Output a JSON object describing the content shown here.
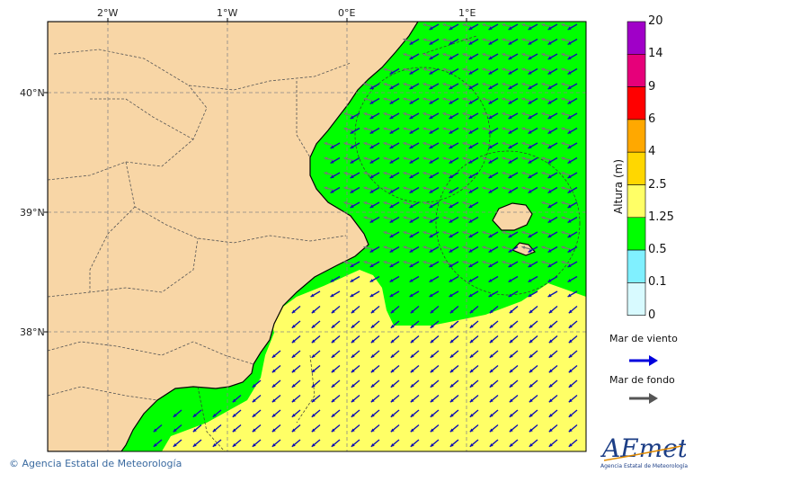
{
  "map": {
    "lon_labels": [
      "2°W",
      "1°W",
      "0°E",
      "1°E"
    ],
    "lat_labels": [
      "40°N",
      "39°N",
      "38°N"
    ],
    "colors": {
      "land": "#f8d6a6",
      "sea_green": "#00ff00",
      "sea_yellow": "#ffff66",
      "arrow_wind": "#0a0aaa",
      "arrow_swell": "#555555"
    }
  },
  "colorbar": {
    "title": "Altura (m)",
    "ticks": [
      "20",
      "14",
      "9",
      "6",
      "4",
      "2.5",
      "1.25",
      "0.5",
      "0.1",
      "0"
    ],
    "colors": [
      "#a000c8",
      "#e6007a",
      "#ff0000",
      "#ffa800",
      "#ffd700",
      "#ffff66",
      "#00ff00",
      "#80f0ff",
      "#d8faff"
    ]
  },
  "legend": {
    "wind_sea": "Mar de viento",
    "swell": "Mar de fondo",
    "wind_sea_color": "#0000dd",
    "swell_color": "#555555"
  },
  "footer": {
    "copyright": "© Agencia Estatal de Meteorología",
    "logo_text": "AEmet",
    "logo_subtitle": "Agencia Estatal de Meteorología"
  }
}
